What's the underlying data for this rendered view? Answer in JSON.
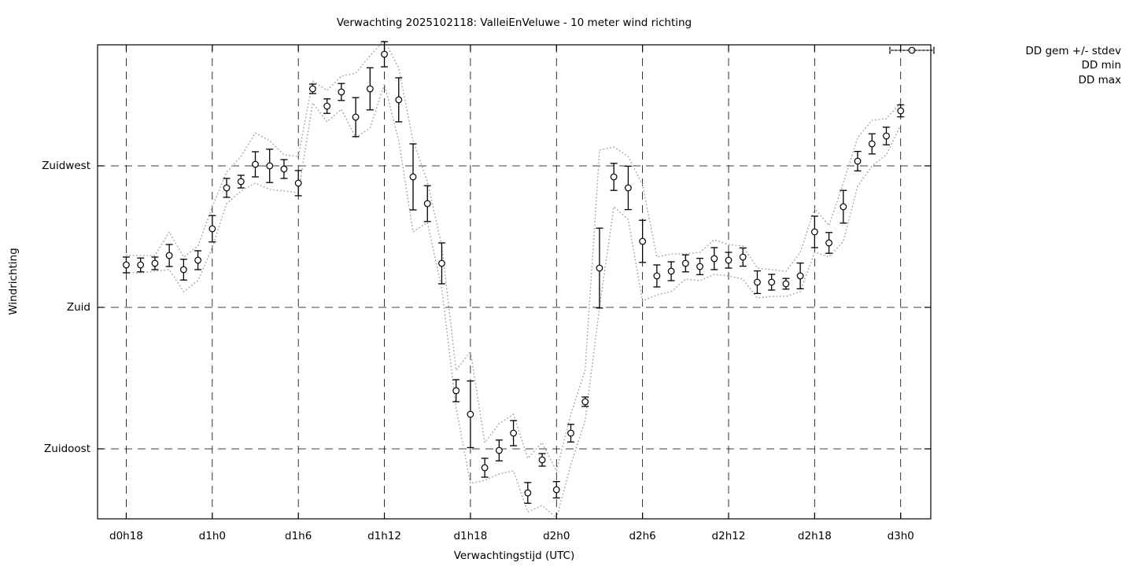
{
  "chart_data": {
    "type": "scatter",
    "title": "Verwachting 2025102118: ValleiEnVeluwe - 10 meter wind richting",
    "xlabel": "Verwachtingstijd (UTC)",
    "ylabel": "Windrichting",
    "grid": true,
    "legend_position": "outside-top-right",
    "legend": [
      {
        "label": "DD gem +/- stdev",
        "style": "errorbar-points"
      },
      {
        "label": "DD min",
        "style": "dotted"
      },
      {
        "label": "DD max",
        "style": "dotted"
      }
    ],
    "x_ticks": [
      {
        "label": "d0h18",
        "hours": 0
      },
      {
        "label": "d1h0",
        "hours": 6
      },
      {
        "label": "d1h6",
        "hours": 12
      },
      {
        "label": "d1h12",
        "hours": 18
      },
      {
        "label": "d1h18",
        "hours": 24
      },
      {
        "label": "d2h0",
        "hours": 30
      },
      {
        "label": "d2h6",
        "hours": 36
      },
      {
        "label": "d2h12",
        "hours": 42
      },
      {
        "label": "d2h18",
        "hours": 48
      },
      {
        "label": "d3h0",
        "hours": 54
      }
    ],
    "y_ticks": [
      {
        "label": "Zuidwest",
        "deg": 225
      },
      {
        "label": "Zuid",
        "deg": 180
      },
      {
        "label": "Zuidoost",
        "deg": 135
      }
    ],
    "x_range_hours": [
      -2,
      56.1
    ],
    "y_range_deg": [
      112.75,
      263.5
    ],
    "series": {
      "hours": [
        0,
        1,
        2,
        3,
        4,
        5,
        6,
        7,
        8,
        9,
        10,
        11,
        12,
        13,
        14,
        15,
        16,
        17,
        18,
        19,
        20,
        21,
        22,
        23,
        24,
        25,
        26,
        27,
        28,
        29,
        30,
        31,
        32,
        33,
        34,
        35,
        36,
        37,
        38,
        39,
        40,
        41,
        42,
        43,
        44,
        45,
        46,
        47,
        48,
        49,
        50,
        51,
        52,
        53,
        54
      ],
      "dd_mean": [
        193.5,
        193.5,
        194,
        196.5,
        192,
        195,
        205,
        218,
        220,
        225.5,
        225,
        224,
        219.5,
        249.5,
        244,
        248.5,
        240.5,
        249.5,
        260.5,
        246,
        221.5,
        213,
        194,
        153.5,
        146,
        129,
        134.5,
        140,
        121,
        131.5,
        122,
        140,
        150,
        192.5,
        221.5,
        218,
        201,
        190,
        191.5,
        194,
        193,
        195.5,
        195,
        196,
        188,
        188,
        187.5,
        190,
        204,
        200.5,
        212,
        226.5,
        232,
        234.5,
        242.5
      ],
      "dd_stdev": [
        2.5,
        2.2,
        2,
        3.5,
        3.3,
        3,
        4.2,
        3,
        2,
        4,
        5.3,
        3,
        4,
        1.5,
        2.3,
        2.7,
        6.2,
        6.7,
        4,
        7,
        10.5,
        5.7,
        6.5,
        3.5,
        10.6,
        3,
        3.3,
        4,
        3.3,
        2,
        2.6,
        2.8,
        1.5,
        12.7,
        4.3,
        6.9,
        6.7,
        3.5,
        3,
        2.7,
        2.6,
        3.5,
        2.5,
        2.9,
        3.6,
        2.5,
        1.7,
        4.1,
        5,
        3.3,
        5.2,
        3.1,
        3.2,
        2.8,
        1.9
      ],
      "dd_min": [
        191,
        191,
        191.5,
        192,
        185,
        188.5,
        199,
        213,
        217,
        219.5,
        217.5,
        217,
        216.5,
        245,
        239,
        243,
        234,
        237,
        251,
        233,
        204,
        207,
        186,
        148,
        124,
        125,
        127,
        128,
        115,
        117,
        113,
        130,
        144,
        180,
        212,
        208,
        182,
        184,
        185,
        189,
        188.5,
        190.5,
        190,
        189,
        183,
        183.5,
        183.5,
        185,
        197.5,
        196,
        201,
        218.5,
        225,
        228.5,
        238
      ],
      "dd_max": [
        196.5,
        196.5,
        196.5,
        204,
        196,
        199.5,
        212,
        223,
        228,
        235.5,
        233,
        228.5,
        228,
        252,
        249,
        253.5,
        254.5,
        260,
        265,
        256,
        233,
        220,
        199.5,
        160,
        166,
        137,
        143,
        146,
        132,
        137,
        128,
        146,
        160,
        230,
        231,
        228,
        219,
        196,
        197,
        197,
        197.5,
        201.5,
        200,
        199.5,
        192.5,
        192,
        191.5,
        197.5,
        211.5,
        206,
        219.5,
        234,
        239.5,
        240,
        245
      ]
    },
    "marker": "open-circle",
    "colors": {
      "points": "#000000",
      "errorbars": "#000000",
      "minmax_lines": "#a8a8a8",
      "grid": "#000000",
      "border": "#000000",
      "background": "#ffffff"
    }
  }
}
